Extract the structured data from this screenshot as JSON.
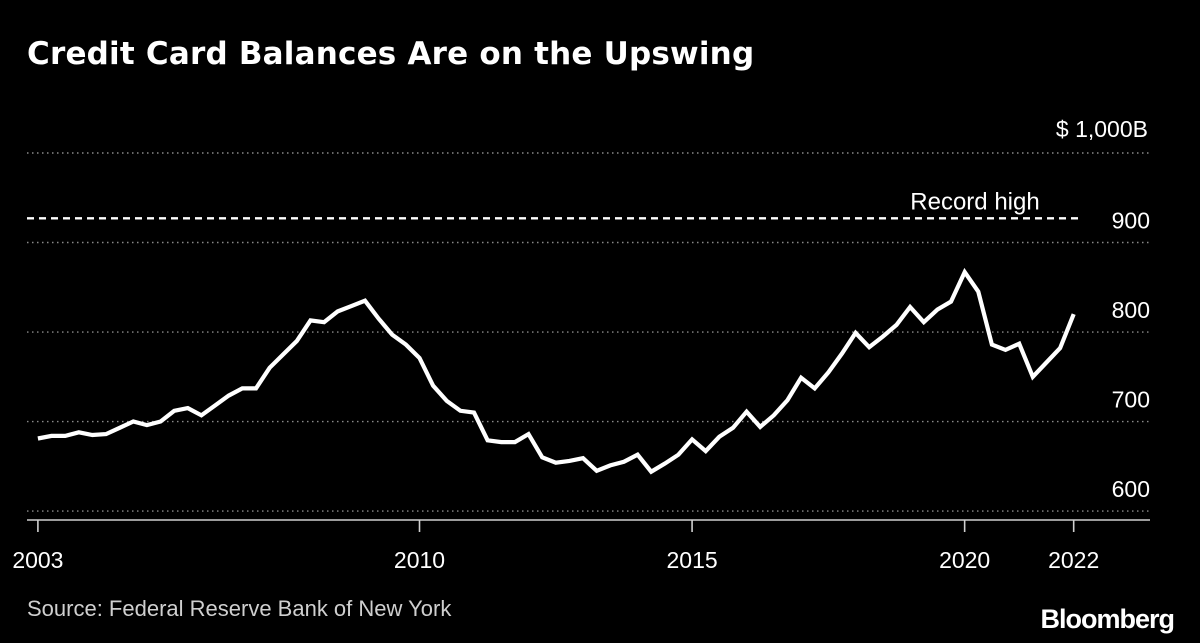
{
  "title": "Credit Card Balances Are on the Upswing",
  "source": "Source: Federal Reserve Bank of New York",
  "brand": "Bloomberg",
  "chart_data": {
    "type": "line",
    "title": "Credit Card Balances Are on the Upswing",
    "unit_label": "$ 1,000B",
    "y_ticks": [
      "600",
      "700",
      "800",
      "900"
    ],
    "y_tick_values": [
      600,
      700,
      800,
      900,
      1000
    ],
    "x_ticks": [
      "2003",
      "2010",
      "2015",
      "2020",
      "2022"
    ],
    "x_tick_values": [
      2003,
      2010,
      2015,
      2020,
      2022
    ],
    "xlim": [
      2002.8,
      2023.4
    ],
    "ylim": [
      590,
      1000
    ],
    "grid": "horizontal dotted",
    "reference_line": {
      "label": "Record high",
      "value": 927
    },
    "series": [
      {
        "x": [
          2003.0,
          2003.25,
          2003.5,
          2003.75,
          2004.0,
          2004.25,
          2004.5,
          2004.75,
          2005.0,
          2005.25,
          2005.5,
          2005.75,
          2006.0,
          2006.25,
          2006.5,
          2006.75,
          2007.0,
          2007.25,
          2007.5,
          2007.75,
          2008.0,
          2008.25,
          2008.5,
          2008.75,
          2009.0,
          2009.25,
          2009.5,
          2009.75,
          2010.0,
          2010.25,
          2010.5,
          2010.75,
          2011.0,
          2011.25,
          2011.5,
          2011.75,
          2012.0,
          2012.25,
          2012.5,
          2012.75,
          2013.0,
          2013.25,
          2013.5,
          2013.75,
          2014.0,
          2014.25,
          2014.5,
          2014.75,
          2015.0,
          2015.25,
          2015.5,
          2015.75,
          2016.0,
          2016.25,
          2016.5,
          2016.75,
          2017.0,
          2017.25,
          2017.5,
          2017.75,
          2018.0,
          2018.25,
          2018.5,
          2018.75,
          2019.0,
          2019.25,
          2019.5,
          2019.75,
          2020.0,
          2020.25,
          2020.5,
          2020.75,
          2021.0,
          2021.25,
          2021.5,
          2021.75,
          2022.0
        ],
        "values": [
          681,
          684,
          684,
          688,
          685,
          686,
          693,
          700,
          696,
          700,
          712,
          715,
          707,
          718,
          729,
          737,
          737,
          760,
          775,
          790,
          813,
          811,
          823,
          829,
          835,
          815,
          797,
          786,
          771,
          740,
          723,
          712,
          710,
          679,
          677,
          677,
          686,
          660,
          654,
          656,
          659,
          645,
          651,
          655,
          663,
          644,
          653,
          663,
          680,
          667,
          683,
          693,
          711,
          694,
          707,
          724,
          749,
          737,
          755,
          776,
          799,
          783,
          795,
          808,
          828,
          811,
          825,
          834,
          867,
          845,
          786,
          780,
          787,
          750,
          766,
          782,
          820
        ]
      }
    ]
  }
}
